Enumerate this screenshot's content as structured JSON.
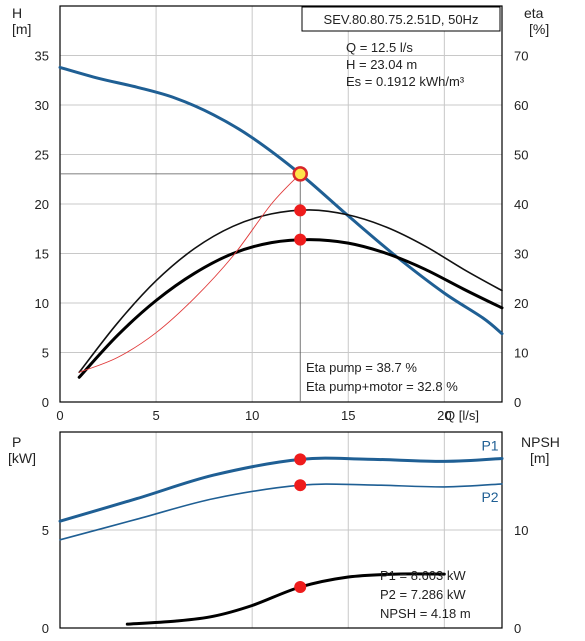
{
  "chart_data": [
    {
      "type": "line",
      "model": "SEV.80.80.75.2.51D, 50Hz",
      "xlabel": "Q [l/s]",
      "x_tick_labels": [
        "0",
        "5",
        "10",
        "15",
        "20"
      ],
      "xlim": [
        0,
        23
      ],
      "y_left": {
        "label_top": "H",
        "label_unit": "[m]",
        "ticks": [
          0,
          5,
          10,
          15,
          20,
          25,
          30,
          35
        ],
        "lim": [
          0,
          40
        ]
      },
      "y_right": {
        "label_top": "eta",
        "label_unit": "[%]",
        "ticks": [
          0,
          10,
          20,
          30,
          40,
          50,
          60,
          70
        ],
        "lim": [
          0,
          80
        ]
      },
      "grid": true,
      "duty_point": {
        "q": 12.5,
        "h": 23.04,
        "eta_pump": 38.7,
        "eta_total": 32.8
      },
      "info_top": [
        "Q = 12.5 l/s",
        "H = 23.04 m",
        "Es = 0.1912 kWh/m³"
      ],
      "info_bottom": [
        "Eta pump = 38.7 %",
        "Eta pump+motor = 32.8 %"
      ],
      "series": [
        {
          "axis": "left",
          "color": "#1f5f94",
          "x": [
            0,
            2,
            4,
            6,
            8,
            10,
            12.5,
            15,
            17.5,
            20,
            22,
            23
          ],
          "y": [
            33.8,
            32.7,
            31.8,
            30.7,
            29.0,
            26.7,
            23.04,
            18.8,
            14.7,
            11.0,
            8.5,
            6.9
          ]
        },
        {
          "axis": "right",
          "color": "#111111",
          "x": [
            1,
            3,
            5,
            7,
            9,
            11,
            13,
            15,
            17,
            19,
            21,
            23
          ],
          "y": [
            6.0,
            16.0,
            24.5,
            31.0,
            35.5,
            38.0,
            38.8,
            37.8,
            35.3,
            31.5,
            26.8,
            22.5
          ]
        },
        {
          "axis": "right",
          "color": "#000000",
          "x": [
            1,
            3,
            5,
            7,
            9,
            11,
            13,
            15,
            17,
            19,
            21,
            23
          ],
          "y": [
            5.0,
            13.5,
            20.5,
            26.0,
            30.0,
            32.2,
            32.8,
            32.1,
            30.0,
            26.8,
            22.8,
            19.0
          ]
        },
        {
          "axis": "right",
          "color": "#e03a3a",
          "x": [
            1,
            3,
            5,
            7,
            9,
            11,
            12.5
          ],
          "y": [
            6.0,
            9.0,
            14.0,
            21.0,
            29.5,
            40.0,
            46.1
          ]
        }
      ]
    },
    {
      "type": "line",
      "y_left": {
        "label_top": "P",
        "label_unit": "[kW]",
        "ticks": [
          0,
          5
        ],
        "lim": [
          0,
          10
        ]
      },
      "y_right": {
        "label_top": "NPSH",
        "label_unit": "[m]",
        "ticks": [
          0,
          10
        ],
        "lim": [
          0,
          20
        ]
      },
      "xlim": [
        0,
        23
      ],
      "grid": true,
      "info": [
        "P1 = 8.603 kW",
        "P2 = 7.286 kW",
        "NPSH = 4.18 m"
      ],
      "markers": {
        "p1": 8.603,
        "p2": 7.286,
        "npsh": 4.18
      },
      "series": [
        {
          "name": "P1",
          "axis": "left",
          "color": "#1f5f94",
          "x": [
            0,
            4,
            8,
            12.5,
            16,
            20,
            23
          ],
          "y": [
            5.45,
            6.6,
            7.8,
            8.603,
            8.61,
            8.5,
            8.65
          ]
        },
        {
          "name": "P2",
          "axis": "left",
          "color": "#1f5f94",
          "x": [
            0,
            4,
            8,
            12.5,
            16,
            20,
            23
          ],
          "y": [
            4.5,
            5.55,
            6.6,
            7.286,
            7.3,
            7.2,
            7.35
          ]
        },
        {
          "axis": "right",
          "color": "#000000",
          "x": [
            3.5,
            6,
            8,
            10,
            12.5,
            15,
            17.5,
            20
          ],
          "y": [
            0.4,
            0.7,
            1.2,
            2.3,
            4.18,
            5.2,
            5.5,
            5.5
          ]
        }
      ]
    }
  ]
}
